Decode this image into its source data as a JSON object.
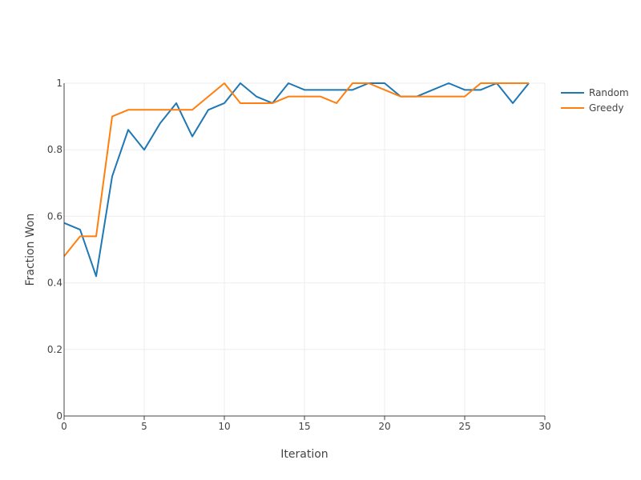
{
  "chart_data": {
    "type": "line",
    "title": "",
    "xlabel": "Iteration",
    "ylabel": "Fraction Won",
    "xlim": [
      0,
      30
    ],
    "ylim": [
      0,
      1
    ],
    "x_ticks": [
      0,
      5,
      10,
      15,
      20,
      25,
      30
    ],
    "y_ticks": [
      0,
      0.2,
      0.4,
      0.6,
      0.8,
      1
    ],
    "grid": true,
    "legend_position": "top-right",
    "x": [
      0,
      1,
      2,
      3,
      4,
      5,
      6,
      7,
      8,
      9,
      10,
      11,
      12,
      13,
      14,
      15,
      16,
      17,
      18,
      19,
      20,
      21,
      22,
      23,
      24,
      25,
      26,
      27,
      28,
      29
    ],
    "series": [
      {
        "name": "Random",
        "color": "#1f77b4",
        "values": [
          0.58,
          0.56,
          0.42,
          0.72,
          0.86,
          0.8,
          0.88,
          0.94,
          0.84,
          0.92,
          0.94,
          1.0,
          0.96,
          0.94,
          1.0,
          0.98,
          0.98,
          0.98,
          0.98,
          1.0,
          1.0,
          0.96,
          0.96,
          0.98,
          1.0,
          0.98,
          0.98,
          1.0,
          0.94,
          1.0
        ]
      },
      {
        "name": "Greedy",
        "color": "#ff7f0e",
        "values": [
          0.48,
          0.54,
          0.54,
          0.9,
          0.92,
          0.92,
          0.92,
          0.92,
          0.92,
          0.96,
          1.0,
          0.94,
          0.94,
          0.94,
          0.96,
          0.96,
          0.96,
          0.94,
          1.0,
          1.0,
          0.98,
          0.96,
          0.96,
          0.96,
          0.96,
          0.96,
          1.0,
          1.0,
          1.0,
          1.0
        ]
      }
    ]
  }
}
